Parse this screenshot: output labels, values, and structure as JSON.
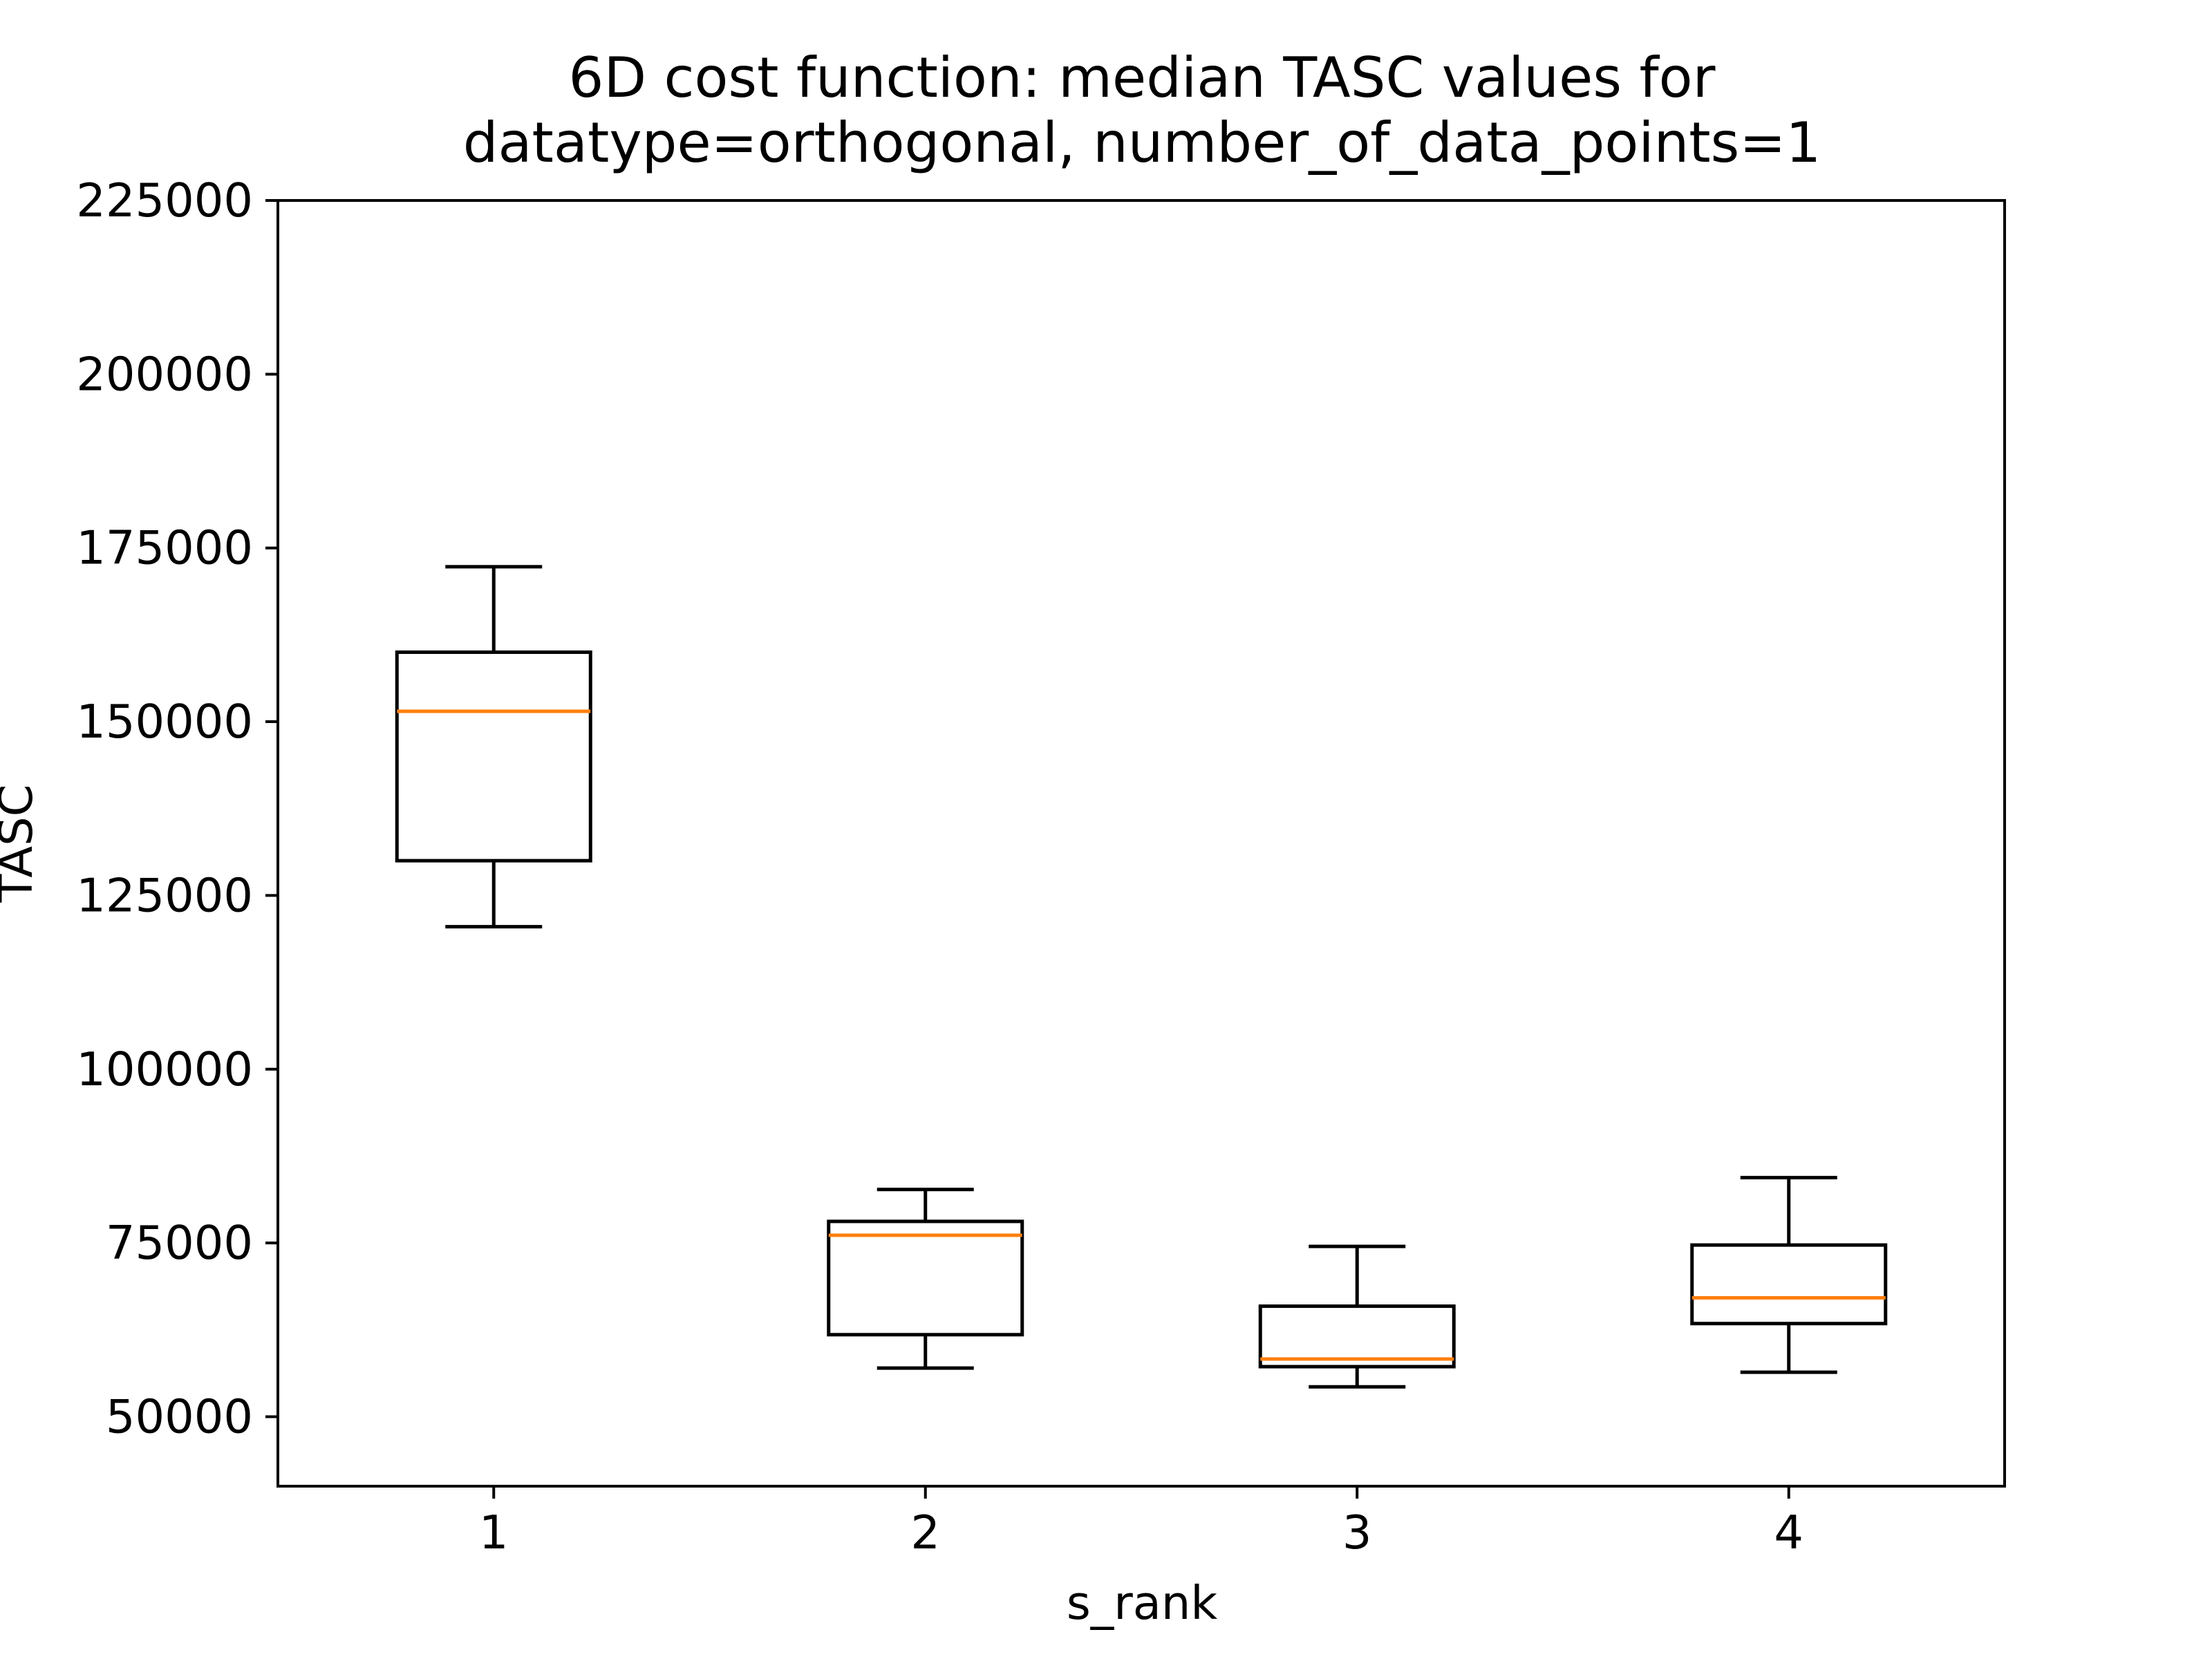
{
  "chart_data": {
    "type": "boxplot",
    "title_lines": [
      "6D cost function: median TASC values for",
      "datatype=orthogonal, number_of_data_points=1"
    ],
    "xlabel": "s_rank",
    "ylabel": "TASC",
    "categories": [
      "1",
      "2",
      "3",
      "4"
    ],
    "ylim": [
      40000,
      225000
    ],
    "yticks": [
      50000,
      75000,
      100000,
      125000,
      150000,
      175000,
      200000,
      225000
    ],
    "ytick_labels": [
      "50000",
      "75000",
      "100000",
      "125000",
      "150000",
      "175000",
      "200000",
      "225000"
    ],
    "boxes": [
      {
        "category": "1",
        "whisker_low": 120500,
        "q1": 130000,
        "median": 151500,
        "q3": 160000,
        "whisker_high": 172300
      },
      {
        "category": "2",
        "whisker_low": 57000,
        "q1": 61800,
        "median": 76100,
        "q3": 78100,
        "whisker_high": 82700
      },
      {
        "category": "3",
        "whisker_low": 54300,
        "q1": 57200,
        "median": 58300,
        "q3": 65900,
        "whisker_high": 74500
      },
      {
        "category": "4",
        "whisker_low": 56400,
        "q1": 63400,
        "median": 67100,
        "q3": 74700,
        "whisker_high": 84400
      }
    ],
    "grid": false,
    "colors": {
      "box": "#000000",
      "median": "#ff7f0e",
      "axes": "#000000",
      "background": "#ffffff"
    }
  }
}
